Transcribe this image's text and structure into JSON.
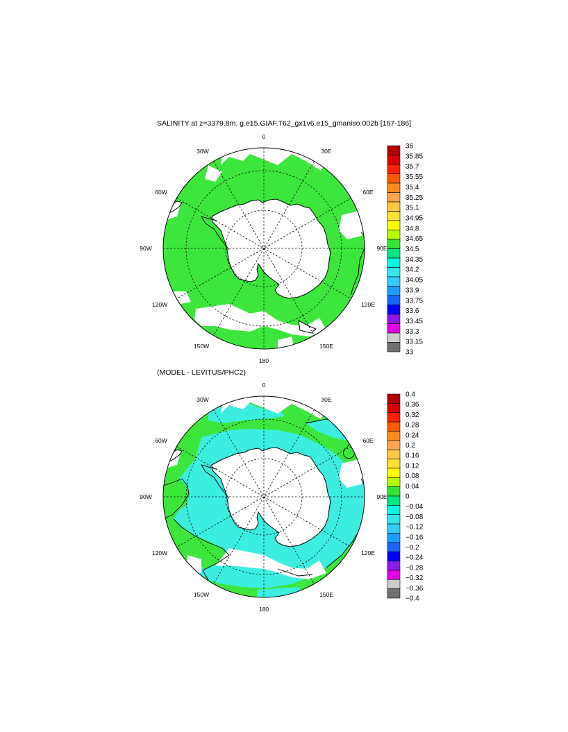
{
  "panels": [
    {
      "title": "SALINITY at z=3379.8m, g.e15.GIAF.T62_gx1v6.e15_gmaniso.002b [167-186]",
      "lon_labels": {
        "n": "0",
        "ne30": "30E",
        "ne60": "60E",
        "e": "90E",
        "se120": "120E",
        "se150": "150E",
        "s": "180",
        "sw150": "150W",
        "sw120": "120W",
        "w": "90W",
        "nw60": "60W",
        "nw30": "30W"
      },
      "colorbar": {
        "labels": [
          "36",
          "35.85",
          "35.7",
          "35.55",
          "35.4",
          "35.25",
          "35.1",
          "34.95",
          "34.8",
          "34.65",
          "34.5",
          "34.35",
          "34.2",
          "34.05",
          "33.9",
          "33.75",
          "33.6",
          "33.45",
          "33.3",
          "33.15",
          "33"
        ],
        "colors": [
          "#b30000",
          "#d90000",
          "#ff2200",
          "#ff5a00",
          "#ff8c1a",
          "#ffa64d",
          "#ffc640",
          "#ffe033",
          "#ffff00",
          "#b3ff00",
          "#33e633",
          "#00e680",
          "#00ffe0",
          "#33e6f0",
          "#33ccff",
          "#1a9fff",
          "#1a66ff",
          "#0000ff",
          "#8c1ae6",
          "#e600e6",
          "#cccccc",
          "#707070"
        ]
      }
    },
    {
      "title": "(MODEL - LEVITUS/PHC2)",
      "lon_labels": {
        "n": "0",
        "ne30": "30E",
        "ne60": "60E",
        "e": "90E",
        "se120": "120E",
        "se150": "150E",
        "s": "180",
        "sw150": "150W",
        "sw120": "120W",
        "w": "90W",
        "nw60": "60W",
        "nw30": "30W"
      },
      "colorbar": {
        "labels": [
          "0.4",
          "0.36",
          "0.32",
          "0.28",
          "0.24",
          "0.2",
          "0.16",
          "0.12",
          "0.08",
          "0.04",
          "0",
          "−0.04",
          "−0.08",
          "−0.12",
          "−0.16",
          "−0.2",
          "−0.24",
          "−0.28",
          "−0.32",
          "−0.36",
          "−0.4"
        ],
        "colors": [
          "#b30000",
          "#d90000",
          "#ff2200",
          "#ff5a00",
          "#ff8c1a",
          "#ffa64d",
          "#ffc640",
          "#ffe033",
          "#ffff00",
          "#b3ff00",
          "#33e633",
          "#00e680",
          "#00ffe0",
          "#33e6f0",
          "#33ccff",
          "#1a9fff",
          "#1a66ff",
          "#0000ff",
          "#8c1ae6",
          "#e600e6",
          "#cccccc",
          "#707070"
        ]
      }
    }
  ],
  "colors": {
    "field_green": "#3ce63c",
    "field_cyan": "#3ceee0",
    "land": "#ffffff",
    "outline": "#000000"
  }
}
